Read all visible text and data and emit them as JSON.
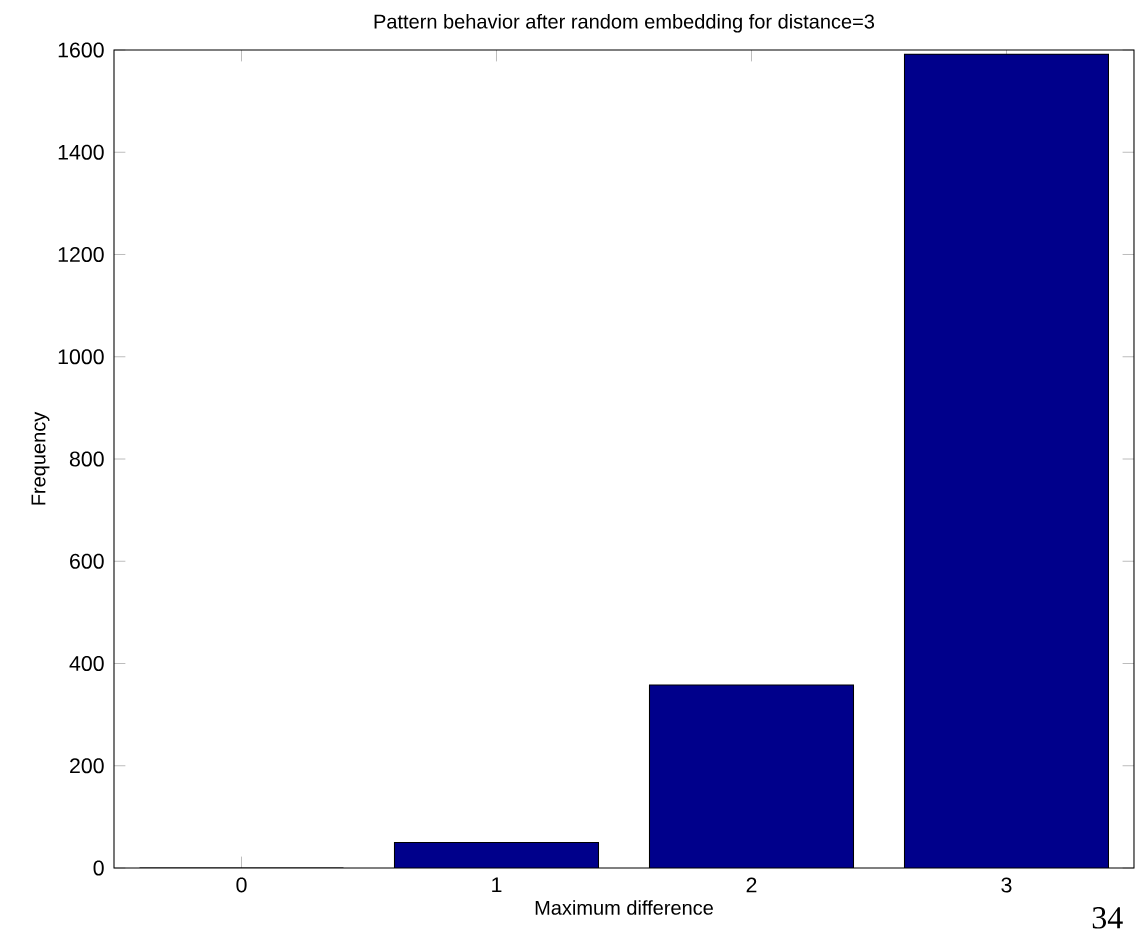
{
  "chart_data": {
    "type": "bar",
    "title": "Pattern behavior after random embedding for distance=3",
    "xlabel": "Maximum difference",
    "ylabel": "Frequency",
    "categories": [
      "0",
      "1",
      "2",
      "3"
    ],
    "values": [
      0,
      50,
      358,
      1592
    ],
    "color": "#00008b",
    "ylim": [
      0,
      1600
    ],
    "yticks": [
      0,
      200,
      400,
      600,
      800,
      1000,
      1200,
      1400,
      1600
    ],
    "grid": false,
    "annotations": [
      "34"
    ]
  }
}
